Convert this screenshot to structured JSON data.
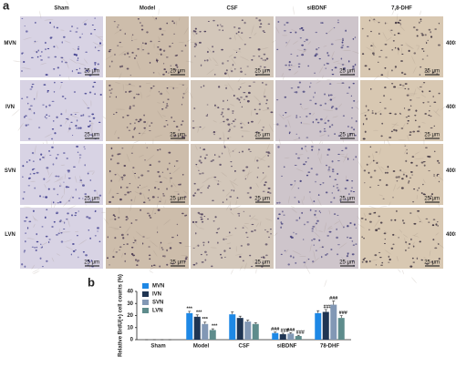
{
  "panel_a": {
    "label": "a",
    "columns": [
      "Sham",
      "Model",
      "CSF",
      "siBDNF",
      "7,8-DHF"
    ],
    "rows": [
      "MVN",
      "IVN",
      "SVN",
      "LVN"
    ],
    "scale_bar": "25 μm",
    "magnification": "400×"
  },
  "panel_b": {
    "label": "b"
  },
  "chart_data": {
    "type": "bar",
    "y_label": "Relative BrdU(+) cell counts (%)",
    "categories": [
      "Sham",
      "Model",
      "CSF",
      "siBDNF",
      "78-DHF"
    ],
    "series": [
      {
        "name": "MVN",
        "color": "#1e88e5",
        "values": [
          0,
          22,
          21,
          5.5,
          22
        ],
        "errors": [
          0,
          1.5,
          2,
          0.8,
          2
        ],
        "labels": [
          null,
          "***",
          null,
          "###",
          null
        ]
      },
      {
        "name": "IVN",
        "color": "#1f3553",
        "values": [
          0,
          19,
          18,
          4.5,
          23
        ],
        "errors": [
          0,
          1.5,
          1.5,
          0.8,
          2
        ],
        "labels": [
          null,
          "***",
          null,
          "###",
          "###"
        ]
      },
      {
        "name": "SVN",
        "color": "#8298b5",
        "values": [
          0,
          13,
          15,
          5,
          29
        ],
        "errors": [
          0,
          1.5,
          1.2,
          0.8,
          3
        ],
        "labels": [
          null,
          "***",
          null,
          "###",
          "###"
        ]
      },
      {
        "name": "LVN",
        "color": "#5e8c8c",
        "values": [
          0,
          8,
          13,
          3,
          18
        ],
        "errors": [
          0,
          1,
          1,
          0.6,
          2
        ],
        "labels": [
          null,
          "***",
          null,
          "###",
          "###"
        ]
      }
    ],
    "ylim": [
      0,
      40
    ],
    "yticks": [
      0,
      10,
      20,
      30,
      40
    ],
    "legend": "upper left"
  }
}
